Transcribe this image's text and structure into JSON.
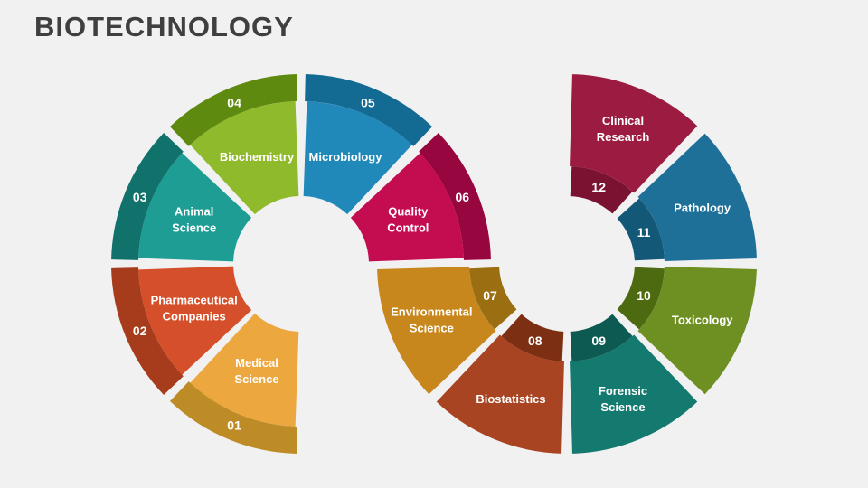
{
  "slide": {
    "title": "BIOTECHNOLOGY",
    "title_color": "#3F3F3F",
    "background": "#F1F1F2"
  },
  "diagram": {
    "type": "segmented-process-donut",
    "text_color": "#FFFFFF",
    "segments": [
      {
        "number": "01",
        "label": "Medical Science",
        "lines": [
          "Medical",
          "Science"
        ],
        "color": "#ECA73E",
        "color_dark": "#BE8C27"
      },
      {
        "number": "02",
        "label": "Pharmaceutical Companies",
        "lines": [
          "Pharmaceutical",
          "Companies"
        ],
        "color": "#D5502A",
        "color_dark": "#A63C1B"
      },
      {
        "number": "03",
        "label": "Animal Science",
        "lines": [
          "Animal",
          "Science"
        ],
        "color": "#1E9D95",
        "color_dark": "#11716B"
      },
      {
        "number": "04",
        "label": "Biochemistry",
        "lines": [
          "Biochemistry"
        ],
        "color": "#8FBA2C",
        "color_dark": "#5F8A10"
      },
      {
        "number": "05",
        "label": "Microbiology",
        "lines": [
          "Microbiology"
        ],
        "color": "#2189B9",
        "color_dark": "#136A93"
      },
      {
        "number": "06",
        "label": "Quality Control",
        "lines": [
          "Quality",
          "Control"
        ],
        "color": "#C40C51",
        "color_dark": "#97063E"
      },
      {
        "number": "07",
        "label": "Environmental Science",
        "lines": [
          "Environmental",
          "Science"
        ],
        "color": "#C8871C",
        "color_dark": "#9C6E12"
      },
      {
        "number": "08",
        "label": "Biostatistics",
        "lines": [
          "Biostatistics"
        ],
        "color": "#A84421",
        "color_dark": "#7C2F12"
      },
      {
        "number": "09",
        "label": "Forensic Science",
        "lines": [
          "Forensic",
          "Science"
        ],
        "color": "#147A6F",
        "color_dark": "#0C5A51"
      },
      {
        "number": "10",
        "label": "Toxicology",
        "lines": [
          "Toxicology"
        ],
        "color": "#6E9023",
        "color_dark": "#4E6A11"
      },
      {
        "number": "11",
        "label": "Pathology",
        "lines": [
          "Pathology"
        ],
        "color": "#1F7099",
        "color_dark": "#135877"
      },
      {
        "number": "12",
        "label": "Clinical Research",
        "lines": [
          "Clinical",
          "Research"
        ],
        "color": "#9C1C41",
        "color_dark": "#7A1232"
      }
    ]
  }
}
